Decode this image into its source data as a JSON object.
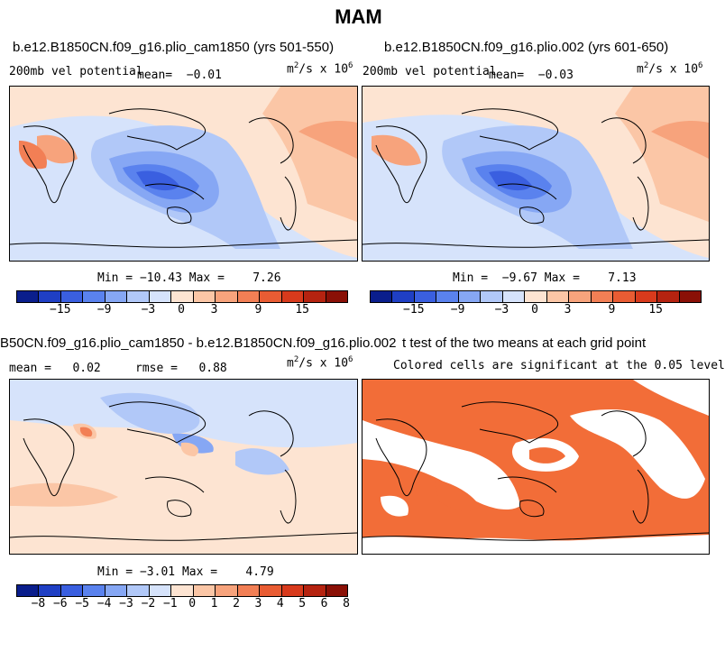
{
  "figure": {
    "season": "MAM"
  },
  "panel1": {
    "case": "b.e12.B1850CN.f09_g16.plio_cam1850 (yrs 501-550)",
    "variable": "200mb vel potential",
    "mean_label": "mean=",
    "mean_value": "−0.01",
    "units_base": "m",
    "units_exp1": "2",
    "units_mid": "/s x 10",
    "units_exp2": "6",
    "min_label": "Min =",
    "min_value": "−10.43",
    "max_label": "Max =",
    "max_value": "7.26"
  },
  "panel2": {
    "case": "b.e12.B1850CN.f09_g16.plio.002 (yrs 601-650)",
    "variable": "200mb vel potential",
    "mean_label": "mean=",
    "mean_value": "−0.03",
    "units_base": "m",
    "units_exp1": "2",
    "units_mid": "/s x 10",
    "units_exp2": "6",
    "min_label": "Min =",
    "min_value": "−9.67",
    "max_label": "Max =",
    "max_value": "7.13"
  },
  "panel3": {
    "case": "B50CN.f09_g16.plio_cam1850 - b.e12.B1850CN.f09_g16.plio.002",
    "mean_label": "mean =",
    "mean_value": "0.02",
    "rmse_label": "rmse =",
    "rmse_value": "0.88",
    "units_base": "m",
    "units_exp1": "2",
    "units_mid": "/s x 10",
    "units_exp2": "6",
    "min_label": "Min =",
    "min_value": "−3.01",
    "max_label": "Max =",
    "max_value": "4.79"
  },
  "panel4": {
    "title": "t test of the two means at each grid point",
    "subtitle": "Colored cells are significant at the 0.05 level"
  },
  "colorbar_abs": {
    "colors": [
      "#0a1e8c",
      "#1f3fc4",
      "#3a5fe0",
      "#5a82ee",
      "#86a7f4",
      "#b1c8f8",
      "#d6e3fb",
      "#fde4d2",
      "#fbc6a6",
      "#f7a37c",
      "#f27f55",
      "#e95c33",
      "#d83a1c",
      "#b52310",
      "#8a1006"
    ],
    "labels": [
      "−15",
      "−9",
      "−3",
      "0",
      "3",
      "9",
      "15"
    ]
  },
  "colorbar_diff": {
    "colors": [
      "#0a1e8c",
      "#1f3fc4",
      "#3a5fe0",
      "#5a82ee",
      "#86a7f4",
      "#b1c8f8",
      "#d6e3fb",
      "#fde4d2",
      "#fbc6a6",
      "#f7a37c",
      "#f27f55",
      "#e95c33",
      "#d83a1c",
      "#b52310",
      "#8a1006"
    ],
    "labels": [
      "−8",
      "−6",
      "−5",
      "−4",
      "−3",
      "−2",
      "−1",
      "0",
      "1",
      "2",
      "3",
      "4",
      "5",
      "6",
      "8"
    ]
  },
  "colors": {
    "ttest_fill": "#f26d38",
    "coast": "#000000"
  }
}
